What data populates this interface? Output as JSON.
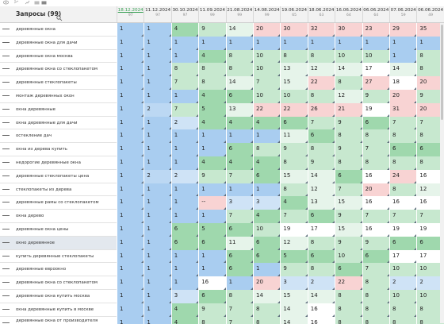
{
  "header": {
    "title": "Запросы (99)",
    "dates": [
      "18.12.2024",
      "11.12.2024",
      "30.10.2024",
      "11.09.2024",
      "21.08.2024",
      "14.08.2024",
      "19.06.2024",
      "18.06.2024",
      "16.06.2024",
      "06.06.2024",
      "07.06.2024",
      "06.06.2024"
    ],
    "counts": [
      "97",
      "97",
      "97",
      "99",
      "99",
      "99",
      "65",
      "63",
      "64",
      "64",
      "59",
      "49"
    ]
  },
  "rows": [
    {
      "kw": "деревянные окна",
      "vals": [
        "1",
        "1",
        "4",
        "9",
        "14",
        "20",
        "30",
        "32",
        "30",
        "23",
        "29",
        "35"
      ]
    },
    {
      "kw": "деревянные окна для дачи",
      "vals": [
        "1",
        "1",
        "1",
        "1",
        "1",
        "1",
        "1",
        "1",
        "1",
        "1",
        "1",
        "1"
      ]
    },
    {
      "kw": "деревянные окна москва",
      "vals": [
        "1",
        "1",
        "1",
        "4",
        "8",
        "10",
        "8",
        "8",
        "10",
        "10",
        "1",
        "8"
      ]
    },
    {
      "kw": "деревянные окна со стеклопакетом",
      "vals": [
        "1",
        "1",
        "8",
        "8",
        "8",
        "10",
        "13",
        "12",
        "14",
        "17",
        "14",
        "8"
      ]
    },
    {
      "kw": "деревянные стеклопакеты",
      "vals": [
        "1",
        "1",
        "7",
        "8",
        "14",
        "7",
        "15",
        "22",
        "8",
        "27",
        "18",
        "20"
      ]
    },
    {
      "kw": "монтаж деревянных окон",
      "vals": [
        "1",
        "1",
        "1",
        "4",
        "6",
        "10",
        "10",
        "8",
        "12",
        "9",
        "20",
        "9"
      ]
    },
    {
      "kw": "окна деревянные",
      "vals": [
        "1",
        "2",
        "7",
        "5",
        "13",
        "22",
        "22",
        "26",
        "21",
        "19",
        "31",
        "20"
      ]
    },
    {
      "kw": "окна деревянные для дачи",
      "vals": [
        "1",
        "1",
        "2",
        "4",
        "4",
        "4",
        "6",
        "7",
        "9",
        "6",
        "7",
        "7"
      ]
    },
    {
      "kw": "остекление дач",
      "vals": [
        "1",
        "1",
        "1",
        "1",
        "1",
        "1",
        "11",
        "6",
        "8",
        "8",
        "8",
        "8"
      ]
    },
    {
      "kw": "окна из дерева купить",
      "vals": [
        "1",
        "1",
        "1",
        "1",
        "6",
        "8",
        "9",
        "8",
        "9",
        "7",
        "6",
        "6"
      ]
    },
    {
      "kw": "недорогие деревянные окна",
      "vals": [
        "1",
        "1",
        "1",
        "4",
        "4",
        "4",
        "8",
        "9",
        "8",
        "8",
        "8",
        "8"
      ]
    },
    {
      "kw": "деревянные стеклопакеты цена",
      "vals": [
        "1",
        "2",
        "2",
        "9",
        "7",
        "6",
        "15",
        "14",
        "6",
        "16",
        "24",
        "16"
      ]
    },
    {
      "kw": "стеклопакеты из дерева",
      "vals": [
        "1",
        "1",
        "1",
        "1",
        "1",
        "1",
        "8",
        "12",
        "7",
        "20",
        "8",
        "12"
      ]
    },
    {
      "kw": "деревянные рамы со стеклопакетом",
      "vals": [
        "1",
        "1",
        "1",
        "--",
        "3",
        "3",
        "4",
        "13",
        "15",
        "16",
        "16",
        "16"
      ]
    },
    {
      "kw": "окна дерево",
      "vals": [
        "1",
        "1",
        "1",
        "1",
        "7",
        "4",
        "7",
        "6",
        "9",
        "7",
        "7",
        "7"
      ]
    },
    {
      "kw": "деревянные окна цены",
      "vals": [
        "1",
        "1",
        "6",
        "5",
        "6",
        "10",
        "19",
        "17",
        "15",
        "16",
        "19",
        "19"
      ]
    },
    {
      "kw": "окно деревянное",
      "vals": [
        "1",
        "1",
        "6",
        "6",
        "11",
        "6",
        "12",
        "8",
        "9",
        "9",
        "6",
        "6"
      ]
    },
    {
      "kw": "купить деревянные стеклопакеты",
      "vals": [
        "1",
        "1",
        "1",
        "1",
        "6",
        "6",
        "5",
        "6",
        "10",
        "6",
        "17",
        "17"
      ]
    },
    {
      "kw": "деревянные евроокно",
      "vals": [
        "1",
        "1",
        "1",
        "1",
        "6",
        "1",
        "9",
        "8",
        "6",
        "7",
        "10",
        "10"
      ]
    },
    {
      "kw": "деревянные окна со стеклопакетом",
      "vals": [
        "1",
        "1",
        "1",
        "16",
        "1",
        "20",
        "3",
        "2",
        "22",
        "8",
        "2",
        "2"
      ]
    },
    {
      "kw": "деревянные окна купить москва",
      "vals": [
        "1",
        "1",
        "3",
        "6",
        "8",
        "14",
        "15",
        "14",
        "8",
        "8",
        "10",
        "10"
      ]
    },
    {
      "kw": "окна деревянные купить в москве",
      "vals": [
        "1",
        "1",
        "4",
        "9",
        "7",
        "8",
        "14",
        "16",
        "8",
        "8",
        "8",
        "8"
      ]
    },
    {
      "kw": "деревянные окна от производителя москва",
      "vals": [
        "1",
        "1",
        "4",
        "8",
        "7",
        "8",
        "14",
        "16",
        "8",
        "8",
        "8",
        "8"
      ]
    }
  ],
  "colors": {
    "accent_date": "#3aa055",
    "cell_blue": "#a9cdf0",
    "cell_green": "#c7e8cf",
    "cell_pink": "#f8d3d3"
  },
  "icons": [
    "eye-icon",
    "link-icon",
    "chart-icon",
    "folder-icon",
    "search-icon"
  ]
}
